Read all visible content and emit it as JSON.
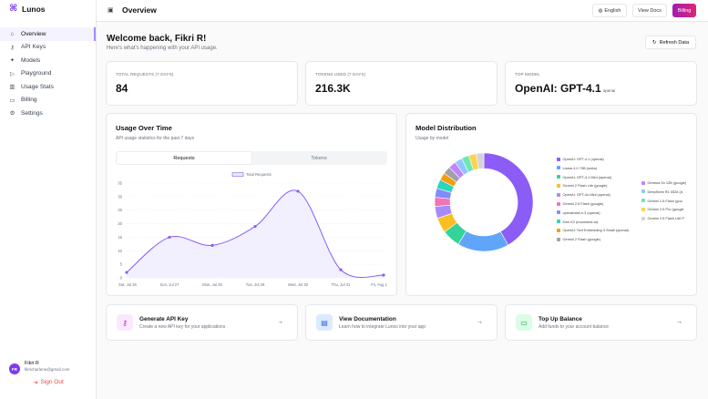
{
  "app": {
    "name": "Lunos"
  },
  "sidebar": {
    "items": [
      {
        "label": "Overview",
        "icon": "home-icon",
        "active": true
      },
      {
        "label": "API Keys",
        "icon": "key-icon"
      },
      {
        "label": "Models",
        "icon": "sparkle-icon"
      },
      {
        "label": "Playground",
        "icon": "play-icon"
      },
      {
        "label": "Usage Stats",
        "icon": "chart-icon"
      },
      {
        "label": "Billing",
        "icon": "card-icon"
      },
      {
        "label": "Settings",
        "icon": "gear-icon"
      }
    ],
    "user": {
      "initials": "FR",
      "name": "Fikri R",
      "email": "fikricharlene@gmail.com"
    },
    "sign_out": "Sign Out"
  },
  "header": {
    "title": "Overview",
    "language": "English",
    "docs": "View Docs",
    "billing": "Billing"
  },
  "welcome": {
    "title": "Welcome back, Fikri R!",
    "subtitle": "Here's what's happening with your API usage.",
    "refresh": "Refresh Data"
  },
  "stats": [
    {
      "label": "TOTAL REQUESTS (7 DAYS)",
      "value": "84"
    },
    {
      "label": "TOKENS USED (7 DAYS)",
      "value": "216.3K"
    },
    {
      "label": "TOP MODEL",
      "value": "OpenAI: GPT-4.1",
      "sub": "openai"
    }
  ],
  "usage": {
    "title": "Usage Over Time",
    "subtitle": "API usage statistics for the past 7 days",
    "tabs": [
      "Requests",
      "Tokens"
    ]
  },
  "distribution": {
    "title": "Model Distribution",
    "subtitle": "Usage by model"
  },
  "chart_data": [
    {
      "type": "area",
      "legend": "Total Requests",
      "categories": [
        "Sat, Jul 26",
        "Sun, Jul 27",
        "Mon, Jul 28",
        "Tue, Jul 29",
        "Wed, Jul 30",
        "Thu, Jul 31",
        "Fri, Aug 1"
      ],
      "x_tick_labels": [
        "Sat, Jul 26",
        "Sun, Jul 27",
        "Mon, Jul 28",
        "Tue, Jul 29",
        "Wed, Jul 30",
        "Thu, Jul 31",
        "Fri, Aug 1"
      ],
      "values": [
        2,
        15,
        12,
        19,
        32,
        3,
        1
      ],
      "y_ticks": [
        "0",
        "5",
        "10",
        "15",
        "20",
        "25",
        "30",
        "35"
      ],
      "ylim": [
        0,
        35
      ],
      "color": "#8b5cf6"
    },
    {
      "type": "pie",
      "labels": [
        "OpenAI: GPT-4.1 (openai)",
        "Llama 4.0 70B (meta)",
        "OpenAI: GPT-4.1 Mini (openai)",
        "Gemini 2 Flash Lite (google)",
        "OpenAI: GPT-4o Mini (openai)",
        "Gemini 2.5 Flash (google)",
        "openai/dall-e-3 (openai)",
        "Kimi K2 (moonshot-ai)",
        "OpenAI: Text Embedding 3 Small (openai)",
        "Gemini 2 Flash (google)",
        "Gemma 3n 12B (google)",
        "DeepSeek R1 0528 (d",
        "Gemini 1.5 Flash (goo",
        "Gemini 2.5 Pro (google",
        "Gemini 2.5 Flash Lite P"
      ],
      "values": [
        42,
        17,
        6,
        5,
        4,
        3,
        3,
        3,
        2.5,
        2.5,
        2.5,
        2.5,
        2.5,
        2.5,
        2.5
      ],
      "colors": [
        "#8b5cf6",
        "#60a5fa",
        "#34d399",
        "#fbbf24",
        "#a78bfa",
        "#f472b6",
        "#818cf8",
        "#2dd4bf",
        "#f59e0b",
        "#a1a1aa",
        "#c084fc",
        "#93c5fd",
        "#6ee7b7",
        "#fcd34d",
        "#d4d4d8"
      ]
    }
  ],
  "actions": [
    {
      "title": "Generate API Key",
      "subtitle": "Create a new API key for your applications",
      "icon": "key-icon",
      "bg": "#fae8ff",
      "fg": "#c026d3"
    },
    {
      "title": "View Documentation",
      "subtitle": "Learn how to integrate Lunos into your app",
      "icon": "book-icon",
      "bg": "#dbeafe",
      "fg": "#2563eb"
    },
    {
      "title": "Top Up Balance",
      "subtitle": "Add funds to your account balance",
      "icon": "wallet-icon",
      "bg": "#dcfce7",
      "fg": "#16a34a"
    }
  ]
}
